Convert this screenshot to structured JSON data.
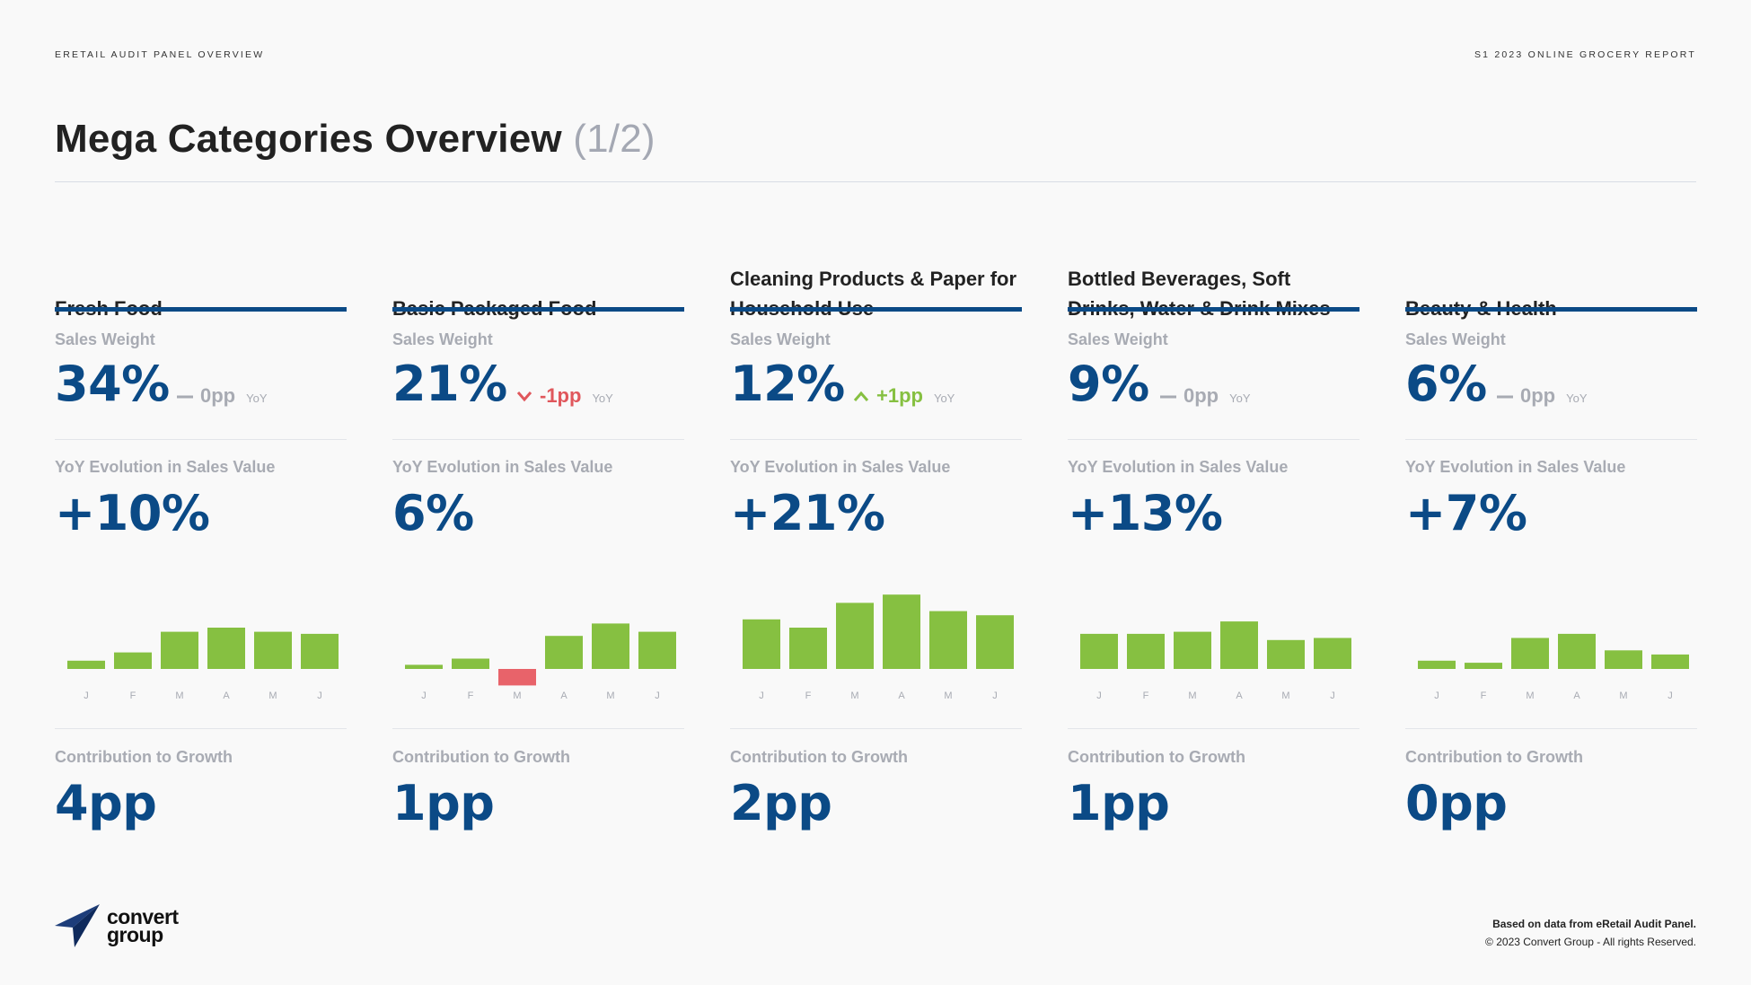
{
  "header": {
    "left": "ERETAIL AUDIT PANEL OVERVIEW",
    "right": "S1 2023 ONLINE GROCERY REPORT"
  },
  "title": {
    "main": "Mega Categories Overview",
    "part": "(1/2)"
  },
  "labels": {
    "sales_weight": "Sales Weight",
    "yoy_evolution": "YoY Evolution in Sales Value",
    "contribution": "Contribution to Growth",
    "yoy": "YoY"
  },
  "categories": [
    {
      "name": "Fresh Food",
      "sales_weight": "34%",
      "delta": "0pp",
      "delta_dir": "flat",
      "yoy_evolution": "+10%",
      "contribution": "4pp"
    },
    {
      "name": "Basic Packaged Food",
      "sales_weight": "21%",
      "delta": "-1pp",
      "delta_dir": "down",
      "yoy_evolution": "6%",
      "contribution": "1pp"
    },
    {
      "name": "Cleaning Products & Paper for Household Use",
      "sales_weight": "12%",
      "delta": "+1pp",
      "delta_dir": "up",
      "yoy_evolution": "+21%",
      "contribution": "2pp"
    },
    {
      "name": "Bottled Beverages, Soft Drinks, Water & Drink Mixes",
      "sales_weight": "9%",
      "delta": "0pp",
      "delta_dir": "flat",
      "yoy_evolution": "+13%",
      "contribution": "1pp"
    },
    {
      "name": "Beauty & Health",
      "sales_weight": "6%",
      "delta": "0pp",
      "delta_dir": "flat",
      "yoy_evolution": "+7%",
      "contribution": "0pp"
    }
  ],
  "chart_data": [
    {
      "type": "bar",
      "title": "Fresh Food",
      "categories": [
        "J",
        "F",
        "M",
        "A",
        "M",
        "J"
      ],
      "values": [
        2,
        4,
        9,
        10,
        9,
        8.5
      ],
      "ylim": [
        -5,
        20
      ]
    },
    {
      "type": "bar",
      "title": "Basic Packaged Food",
      "categories": [
        "J",
        "F",
        "M",
        "A",
        "M",
        "J"
      ],
      "values": [
        1,
        2.5,
        -4,
        8,
        11,
        9
      ],
      "ylim": [
        -5,
        20
      ]
    },
    {
      "type": "bar",
      "title": "Cleaning Products & Paper for Household Use",
      "categories": [
        "J",
        "F",
        "M",
        "A",
        "M",
        "J"
      ],
      "values": [
        12,
        10,
        16,
        18,
        14,
        13
      ],
      "ylim": [
        -5,
        20
      ]
    },
    {
      "type": "bar",
      "title": "Bottled Beverages, Soft Drinks, Water & Drink Mixes",
      "categories": [
        "J",
        "F",
        "M",
        "A",
        "M",
        "J"
      ],
      "values": [
        8.5,
        8.5,
        9,
        11.5,
        7,
        7.5
      ],
      "ylim": [
        -5,
        20
      ]
    },
    {
      "type": "bar",
      "title": "Beauty & Health",
      "categories": [
        "J",
        "F",
        "M",
        "A",
        "M",
        "J"
      ],
      "values": [
        2,
        1.5,
        7.5,
        8.5,
        4.5,
        3.5
      ],
      "ylim": [
        -5,
        20
      ]
    }
  ],
  "colors": {
    "accent": "#0b4a86",
    "positive": "#86c041",
    "negative": "#e8636a",
    "muted": "#a8abb3"
  },
  "footer": {
    "line1": "Based on data from eRetail Audit Panel.",
    "line2": "© 2023 Convert Group - All rights Reserved."
  },
  "logo": {
    "line1": "convert",
    "line2": "group",
    "icon": "paper-plane-icon"
  }
}
